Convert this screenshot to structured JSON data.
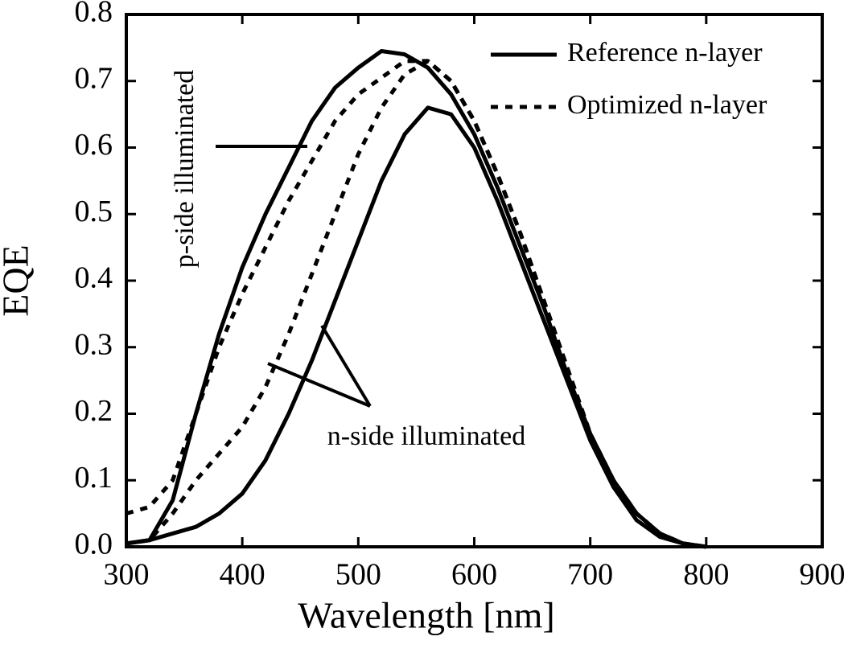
{
  "chart_data": {
    "type": "line",
    "x_label": "Wavelength [nm]",
    "y_label": "EQE",
    "xlim": [
      300,
      900
    ],
    "ylim": [
      0,
      0.8
    ],
    "xticks": [
      300,
      400,
      500,
      600,
      700,
      800,
      900
    ],
    "yticks": [
      {
        "value": 0,
        "label": "0.0"
      },
      0.1,
      0.2,
      0.3,
      0.4,
      0.5,
      0.6,
      0.7,
      0.8
    ],
    "legend": "upper right",
    "annotations": [
      "p-side illuminated",
      "n-side illuminated"
    ],
    "x": [
      300,
      320,
      340,
      360,
      380,
      400,
      420,
      440,
      460,
      480,
      500,
      520,
      540,
      560,
      580,
      600,
      620,
      640,
      660,
      680,
      700,
      720,
      740,
      760,
      780,
      800
    ],
    "series": [
      {
        "name": "Reference n-layer",
        "color": "#000000",
        "dash": "solid",
        "values": [
          0.005,
          0.01,
          0.07,
          0.2,
          0.32,
          0.42,
          0.5,
          0.57,
          0.64,
          0.69,
          0.72,
          0.745,
          0.74,
          0.72,
          0.68,
          0.62,
          0.54,
          0.45,
          0.36,
          0.26,
          0.17,
          0.1,
          0.05,
          0.02,
          0.005,
          0
        ]
      },
      {
        "name": "Optimized n-layer",
        "color": "#000000",
        "dash": "dashed",
        "values": [
          0.05,
          0.06,
          0.1,
          0.2,
          0.3,
          0.38,
          0.45,
          0.52,
          0.58,
          0.64,
          0.68,
          0.705,
          0.73,
          0.73,
          0.7,
          0.64,
          0.56,
          0.47,
          0.37,
          0.27,
          0.17,
          0.1,
          0.05,
          0.02,
          0.005,
          0
        ]
      },
      {
        "name": "Reference n-layer",
        "color": "#000000",
        "dash": "solid",
        "values": [
          0.005,
          0.01,
          0.02,
          0.03,
          0.05,
          0.08,
          0.13,
          0.2,
          0.28,
          0.37,
          0.46,
          0.55,
          0.62,
          0.66,
          0.65,
          0.6,
          0.52,
          0.43,
          0.34,
          0.25,
          0.16,
          0.09,
          0.04,
          0.015,
          0.005,
          0
        ]
      },
      {
        "name": "Optimized n-layer",
        "color": "#000000",
        "dash": "dashed",
        "values": [
          0.005,
          0.01,
          0.05,
          0.1,
          0.14,
          0.18,
          0.24,
          0.32,
          0.41,
          0.5,
          0.59,
          0.66,
          0.71,
          0.73,
          0.7,
          0.64,
          0.56,
          0.47,
          0.37,
          0.27,
          0.17,
          0.1,
          0.05,
          0.02,
          0.005,
          0
        ]
      }
    ]
  }
}
